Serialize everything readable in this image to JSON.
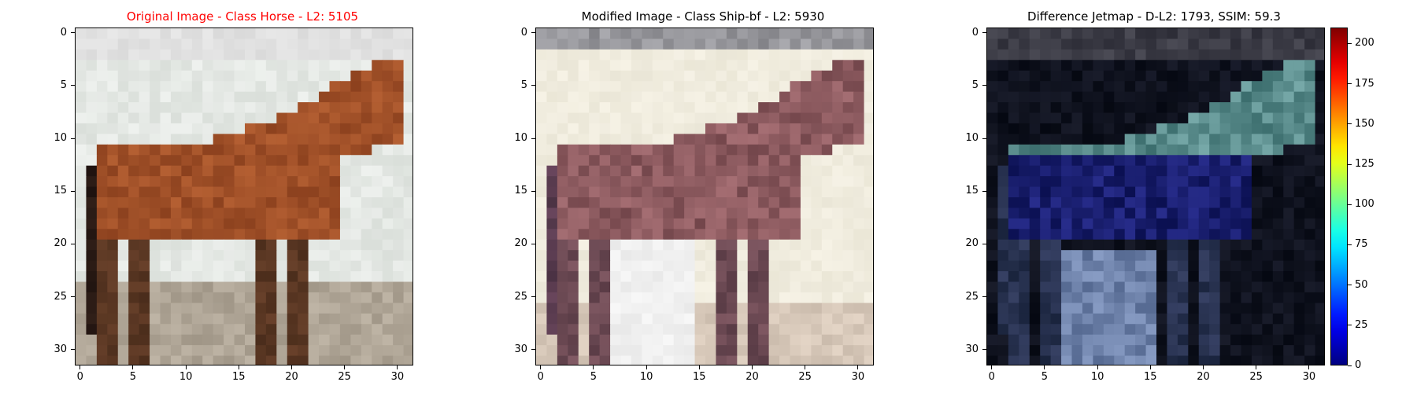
{
  "panels": [
    {
      "title": "Original Image - Class Horse - L2: 5105",
      "title_color": "#ff0000",
      "kind": "original"
    },
    {
      "title": "Modified Image - Class Ship-bf - L2: 5930",
      "title_color": "#000000",
      "kind": "modified"
    },
    {
      "title": "Difference Jetmap - D-L2: 1793, SSIM: 59.3",
      "title_color": "#000000",
      "kind": "difference"
    }
  ],
  "axis": {
    "x_ticks": [
      "0",
      "5",
      "10",
      "15",
      "20",
      "25",
      "30"
    ],
    "y_ticks": [
      "0",
      "5",
      "10",
      "15",
      "20",
      "25",
      "30"
    ],
    "range": [
      -0.5,
      31.5
    ],
    "pixels": 32
  },
  "colorbar": {
    "colormap": "jet",
    "min": 0,
    "max": 210,
    "ticks": [
      "0",
      "25",
      "50",
      "75",
      "100",
      "125",
      "150",
      "175",
      "200"
    ]
  }
}
